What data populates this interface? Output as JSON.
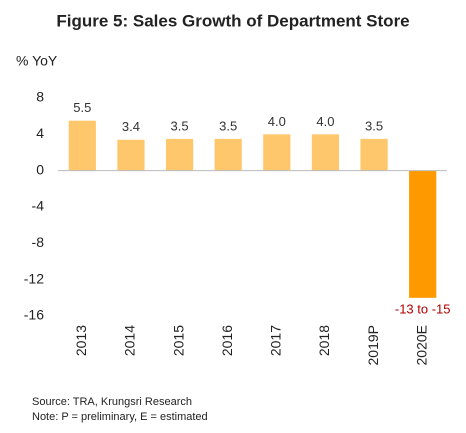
{
  "chart_data": {
    "type": "bar",
    "title": "Figure 5: Sales Growth of Department Store",
    "y_label": "% YoY",
    "categories": [
      "2013",
      "2014",
      "2015",
      "2016",
      "2017",
      "2018",
      "2019P",
      "2020E"
    ],
    "values": [
      5.5,
      3.4,
      3.5,
      3.5,
      4.0,
      4.0,
      3.5,
      -14
    ],
    "value_labels": [
      "5.5",
      "3.4",
      "3.5",
      "3.5",
      "4.0",
      "4.0",
      "3.5",
      "-13 to -15"
    ],
    "colors": [
      "#ffc76b",
      "#ffc76b",
      "#ffc76b",
      "#ffc76b",
      "#ffc76b",
      "#ffc76b",
      "#ffc76b",
      "#ff9900"
    ],
    "ylim": [
      -16,
      8
    ],
    "yticks": [
      8,
      4,
      0,
      -4,
      -8,
      -12,
      -16
    ],
    "grid": false,
    "source": "Source: TRA, Krungsri Research",
    "note": "Note: P = preliminary, E = estimated"
  }
}
